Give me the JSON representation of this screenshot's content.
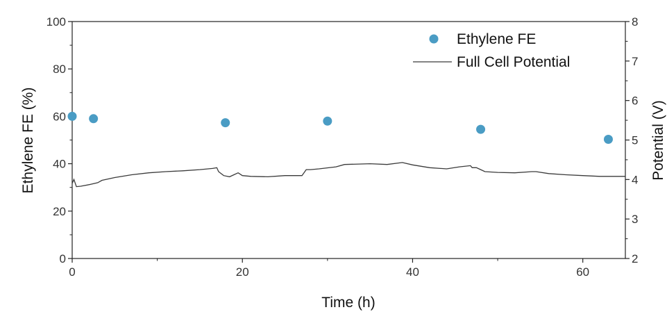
{
  "chart_data": {
    "type": "scatter",
    "x_axis": {
      "label": "Time (h)",
      "range": [
        0,
        65
      ],
      "ticks": [
        0,
        20,
        40,
        60
      ],
      "tick_labels": [
        "0",
        "20",
        "40",
        "60"
      ]
    },
    "y_axis_left": {
      "label": "Ethylene FE (%)",
      "range": [
        0,
        100
      ],
      "ticks": [
        0,
        20,
        40,
        60,
        80,
        100
      ],
      "tick_labels": [
        "0",
        "20",
        "40",
        "60",
        "80",
        "100"
      ]
    },
    "y_axis_right": {
      "label": "Potential (V)",
      "range": [
        2,
        8
      ],
      "ticks": [
        2,
        3,
        4,
        5,
        6,
        7,
        8
      ],
      "tick_labels": [
        "2",
        "3",
        "4",
        "5",
        "6",
        "7",
        "8"
      ]
    },
    "grid": false,
    "legend_position": "top-right",
    "series": [
      {
        "name": "Ethylene FE",
        "type": "scatter",
        "axis": "left",
        "color": "#4a9cc4",
        "x": [
          0,
          2.5,
          18,
          30,
          48,
          63
        ],
        "y": [
          60,
          59,
          57.3,
          58,
          54.5,
          50.3
        ]
      },
      {
        "name": "Full Cell Potential",
        "type": "line",
        "axis": "right",
        "color": "#3a3a3a",
        "x": [
          0,
          0.2,
          0.5,
          1,
          2,
          3,
          3.5,
          5,
          7,
          9,
          11,
          13,
          15,
          16.5,
          17,
          17.2,
          17.8,
          18.5,
          19,
          19.5,
          20,
          21,
          23,
          25,
          27,
          27.5,
          28,
          29,
          31,
          32,
          35,
          37,
          38.8,
          40,
          42,
          44,
          45.5,
          46.8,
          47,
          47.5,
          48,
          48.5,
          50,
          52,
          54,
          54.5,
          56,
          58,
          60,
          62,
          64,
          65
        ],
        "y": [
          3.9,
          4.0,
          3.82,
          3.83,
          3.87,
          3.92,
          3.98,
          4.05,
          4.12,
          4.17,
          4.2,
          4.22,
          4.25,
          4.28,
          4.3,
          4.2,
          4.1,
          4.07,
          4.12,
          4.17,
          4.1,
          4.08,
          4.07,
          4.1,
          4.1,
          4.25,
          4.25,
          4.27,
          4.32,
          4.38,
          4.4,
          4.38,
          4.43,
          4.37,
          4.3,
          4.27,
          4.32,
          4.35,
          4.3,
          4.3,
          4.25,
          4.2,
          4.18,
          4.17,
          4.2,
          4.2,
          4.15,
          4.12,
          4.1,
          4.08,
          4.08,
          4.08
        ]
      }
    ]
  }
}
